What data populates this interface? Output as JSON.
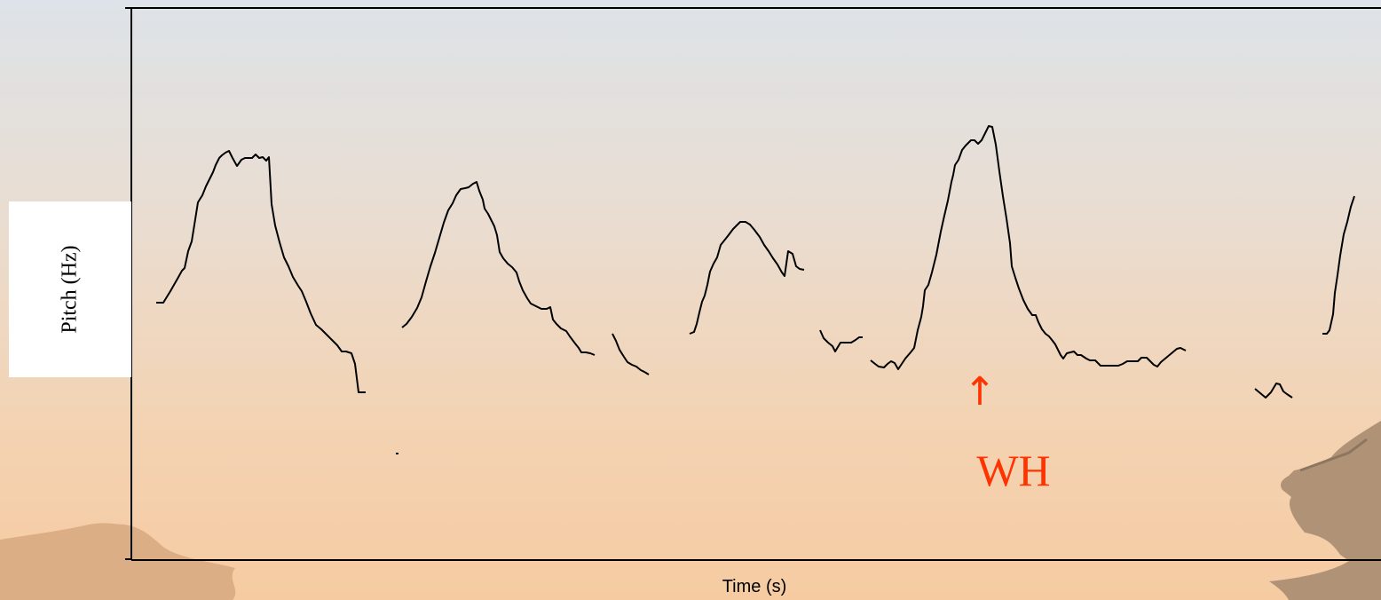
{
  "chart_data": {
    "type": "line",
    "xlabel": "Time (s)",
    "ylabel": "Pitch (Hz)",
    "grid": false,
    "annotations": [
      {
        "arrow": "↑",
        "text": "WH",
        "color": "#ff3300"
      }
    ],
    "pitch_color": "#000000",
    "segments": [
      [
        [
          176,
          341
        ],
        [
          184,
          341
        ],
        [
          192,
          328
        ],
        [
          200,
          314
        ],
        [
          205,
          305
        ],
        [
          208,
          302
        ],
        [
          212,
          283
        ],
        [
          216,
          272
        ],
        [
          220,
          247
        ],
        [
          223,
          228
        ],
        [
          228,
          220
        ],
        [
          232,
          210
        ],
        [
          236,
          202
        ],
        [
          240,
          194
        ],
        [
          243,
          186
        ],
        [
          247,
          178
        ],
        [
          250,
          175
        ],
        [
          254,
          172
        ],
        [
          258,
          170
        ],
        [
          262,
          178
        ],
        [
          267,
          187
        ],
        [
          272,
          180
        ],
        [
          276,
          178
        ],
        [
          280,
          178
        ],
        [
          284,
          178
        ],
        [
          288,
          174
        ],
        [
          292,
          178
        ],
        [
          296,
          177
        ],
        [
          300,
          181
        ],
        [
          303,
          177
        ],
        [
          306,
          230
        ],
        [
          310,
          254
        ],
        [
          315,
          273
        ],
        [
          320,
          290
        ],
        [
          325,
          300
        ],
        [
          330,
          312
        ],
        [
          336,
          322
        ],
        [
          340,
          328
        ],
        [
          345,
          340
        ],
        [
          350,
          353
        ],
        [
          356,
          366
        ],
        [
          362,
          371
        ],
        [
          368,
          377
        ],
        [
          374,
          383
        ],
        [
          380,
          389
        ],
        [
          385,
          396
        ],
        [
          390,
          396
        ],
        [
          396,
          398
        ],
        [
          400,
          410
        ],
        [
          404,
          442
        ],
        [
          412,
          442
        ]
      ],
      [
        [
          446,
          511
        ],
        [
          449,
          511
        ]
      ],
      [
        [
          453,
          369
        ],
        [
          458,
          365
        ],
        [
          464,
          357
        ],
        [
          470,
          347
        ],
        [
          475,
          335
        ],
        [
          480,
          317
        ],
        [
          485,
          300
        ],
        [
          490,
          285
        ],
        [
          495,
          268
        ],
        [
          500,
          251
        ],
        [
          505,
          237
        ],
        [
          510,
          229
        ],
        [
          514,
          220
        ],
        [
          519,
          213
        ],
        [
          524,
          212
        ],
        [
          528,
          211
        ],
        [
          533,
          207
        ],
        [
          537,
          205
        ],
        [
          540,
          215
        ],
        [
          544,
          225
        ],
        [
          546,
          235
        ],
        [
          550,
          241
        ],
        [
          554,
          249
        ],
        [
          557,
          255
        ],
        [
          560,
          265
        ],
        [
          563,
          284
        ],
        [
          567,
          291
        ],
        [
          572,
          297
        ],
        [
          577,
          301
        ],
        [
          582,
          307
        ],
        [
          585,
          317
        ],
        [
          589,
          327
        ],
        [
          594,
          336
        ],
        [
          598,
          342
        ],
        [
          604,
          345
        ],
        [
          610,
          348
        ],
        [
          616,
          348
        ],
        [
          620,
          346
        ],
        [
          623,
          360
        ],
        [
          627,
          365
        ],
        [
          632,
          370
        ],
        [
          638,
          373
        ],
        [
          642,
          379
        ],
        [
          648,
          387
        ],
        [
          652,
          392
        ],
        [
          655,
          397
        ],
        [
          660,
          397
        ],
        [
          665,
          398
        ],
        [
          670,
          400
        ]
      ],
      [
        [
          690,
          376
        ],
        [
          694,
          384
        ],
        [
          698,
          394
        ],
        [
          703,
          402
        ],
        [
          707,
          408
        ],
        [
          712,
          411
        ],
        [
          717,
          413
        ],
        [
          722,
          417
        ],
        [
          726,
          419
        ],
        [
          731,
          422
        ]
      ],
      [
        [
          777,
          376
        ],
        [
          782,
          374
        ],
        [
          785,
          365
        ],
        [
          788,
          352
        ],
        [
          791,
          340
        ],
        [
          794,
          333
        ],
        [
          797,
          321
        ],
        [
          800,
          306
        ],
        [
          804,
          297
        ],
        [
          808,
          290
        ],
        [
          812,
          276
        ],
        [
          816,
          271
        ],
        [
          820,
          266
        ],
        [
          826,
          258
        ],
        [
          831,
          253
        ],
        [
          834,
          250
        ],
        [
          840,
          250
        ],
        [
          845,
          253
        ],
        [
          850,
          259
        ],
        [
          856,
          267
        ],
        [
          861,
          276
        ],
        [
          866,
          283
        ],
        [
          871,
          291
        ],
        [
          876,
          298
        ],
        [
          881,
          307
        ],
        [
          884,
          311
        ],
        [
          888,
          283
        ],
        [
          893,
          286
        ],
        [
          897,
          300
        ],
        [
          901,
          303
        ],
        [
          906,
          304
        ]
      ],
      [
        [
          924,
          372
        ],
        [
          928,
          381
        ],
        [
          933,
          386
        ],
        [
          938,
          390
        ],
        [
          941,
          396
        ],
        [
          947,
          386
        ],
        [
          953,
          386
        ],
        [
          959,
          386
        ],
        [
          964,
          383
        ],
        [
          968,
          380
        ],
        [
          972,
          380
        ]
      ],
      [
        [
          981,
          406
        ],
        [
          986,
          410
        ],
        [
          990,
          413
        ],
        [
          996,
          414
        ],
        [
          1000,
          410
        ],
        [
          1004,
          407
        ],
        [
          1008,
          409
        ],
        [
          1012,
          416
        ],
        [
          1016,
          410
        ],
        [
          1020,
          404
        ],
        [
          1026,
          397
        ],
        [
          1030,
          392
        ],
        [
          1034,
          372
        ],
        [
          1038,
          357
        ],
        [
          1040,
          345
        ],
        [
          1042,
          327
        ],
        [
          1046,
          321
        ],
        [
          1050,
          307
        ],
        [
          1055,
          287
        ],
        [
          1060,
          261
        ],
        [
          1064,
          243
        ],
        [
          1068,
          226
        ],
        [
          1072,
          205
        ],
        [
          1074,
          197
        ],
        [
          1076,
          186
        ],
        [
          1080,
          180
        ],
        [
          1084,
          169
        ],
        [
          1088,
          164
        ],
        [
          1094,
          158
        ],
        [
          1098,
          158
        ],
        [
          1102,
          162
        ],
        [
          1106,
          158
        ],
        [
          1110,
          150
        ],
        [
          1114,
          142
        ],
        [
          1118,
          143
        ],
        [
          1122,
          163
        ],
        [
          1126,
          193
        ],
        [
          1130,
          221
        ],
        [
          1134,
          246
        ],
        [
          1138,
          274
        ],
        [
          1140,
          300
        ],
        [
          1144,
          313
        ],
        [
          1148,
          325
        ],
        [
          1153,
          338
        ],
        [
          1158,
          348
        ],
        [
          1163,
          355
        ],
        [
          1167,
          355
        ],
        [
          1170,
          363
        ],
        [
          1174,
          371
        ],
        [
          1178,
          376
        ],
        [
          1182,
          379
        ],
        [
          1186,
          384
        ],
        [
          1189,
          388
        ],
        [
          1192,
          394
        ],
        [
          1195,
          400
        ],
        [
          1198,
          404
        ],
        [
          1202,
          398
        ],
        [
          1206,
          397
        ],
        [
          1210,
          396
        ],
        [
          1214,
          400
        ],
        [
          1218,
          400
        ],
        [
          1224,
          404
        ],
        [
          1228,
          406
        ],
        [
          1234,
          406
        ],
        [
          1240,
          412
        ],
        [
          1248,
          412
        ],
        [
          1254,
          412
        ],
        [
          1260,
          412
        ],
        [
          1265,
          410
        ],
        [
          1270,
          407
        ],
        [
          1278,
          407
        ],
        [
          1282,
          407
        ],
        [
          1286,
          403
        ],
        [
          1292,
          403
        ],
        [
          1296,
          407
        ],
        [
          1300,
          411
        ],
        [
          1304,
          413
        ],
        [
          1308,
          408
        ],
        [
          1314,
          403
        ],
        [
          1320,
          398
        ],
        [
          1326,
          393
        ],
        [
          1330,
          392
        ],
        [
          1336,
          395
        ]
      ],
      [
        [
          1414,
          438
        ],
        [
          1420,
          443
        ],
        [
          1426,
          448
        ],
        [
          1432,
          442
        ],
        [
          1438,
          432
        ],
        [
          1442,
          433
        ],
        [
          1446,
          441
        ],
        [
          1450,
          444
        ],
        [
          1456,
          448
        ]
      ],
      [
        [
          1490,
          376
        ],
        [
          1495,
          376
        ],
        [
          1498,
          372
        ],
        [
          1502,
          354
        ],
        [
          1504,
          330
        ],
        [
          1507,
          310
        ],
        [
          1510,
          288
        ],
        [
          1514,
          264
        ],
        [
          1518,
          250
        ],
        [
          1522,
          233
        ],
        [
          1526,
          221
        ]
      ]
    ]
  }
}
